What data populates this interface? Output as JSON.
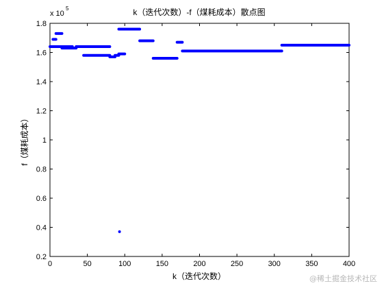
{
  "chart_data": {
    "type": "scatter",
    "title": "k（迭代次数）-f（煤耗成本）散点图",
    "xlabel": "k（迭代次数）",
    "ylabel": "f（煤耗成本）",
    "xlim": [
      0,
      400
    ],
    "ylim": [
      20000,
      180000
    ],
    "y_exponent_label": "x 10",
    "y_exponent_power": "5",
    "x_ticks": [
      0,
      50,
      100,
      150,
      200,
      250,
      300,
      350,
      400
    ],
    "x_tick_labels": [
      "0",
      "50",
      "100",
      "150",
      "200",
      "250",
      "300",
      "350",
      "400"
    ],
    "y_ticks": [
      20000,
      40000,
      60000,
      80000,
      100000,
      120000,
      140000,
      160000,
      180000
    ],
    "y_tick_labels": [
      "0.2",
      "0.4",
      "0.6",
      "0.8",
      "1",
      "1.2",
      "1.4",
      "1.6",
      "1.8"
    ],
    "grid": false,
    "marker_color": "#0000ff",
    "segments": [
      {
        "x_start": 0,
        "x_end": 4,
        "y": 164000
      },
      {
        "x_start": 4,
        "x_end": 8,
        "y": 169000
      },
      {
        "x_start": 4,
        "x_end": 30,
        "y": 164000
      },
      {
        "x_start": 8,
        "x_end": 16,
        "y": 173000
      },
      {
        "x_start": 16,
        "x_end": 35,
        "y": 163000
      },
      {
        "x_start": 35,
        "x_end": 45,
        "y": 164000
      },
      {
        "x_start": 40,
        "x_end": 80,
        "y": 164000
      },
      {
        "x_start": 45,
        "x_end": 80,
        "y": 158000
      },
      {
        "x_start": 80,
        "x_end": 87,
        "y": 157000
      },
      {
        "x_start": 87,
        "x_end": 92,
        "y": 158000
      },
      {
        "x_start": 92,
        "x_end": 100,
        "y": 159000
      },
      {
        "x_start": 92,
        "x_end": 120,
        "y": 176000
      },
      {
        "x_start": 120,
        "x_end": 138,
        "y": 168000
      },
      {
        "x_start": 138,
        "x_end": 170,
        "y": 156000
      },
      {
        "x_start": 170,
        "x_end": 177,
        "y": 167000
      },
      {
        "x_start": 177,
        "x_end": 310,
        "y": 161000
      },
      {
        "x_start": 310,
        "x_end": 400,
        "y": 165000
      }
    ],
    "points": [
      {
        "x": 93,
        "y": 37000
      }
    ]
  },
  "watermark": "@稀土掘金技术社区"
}
